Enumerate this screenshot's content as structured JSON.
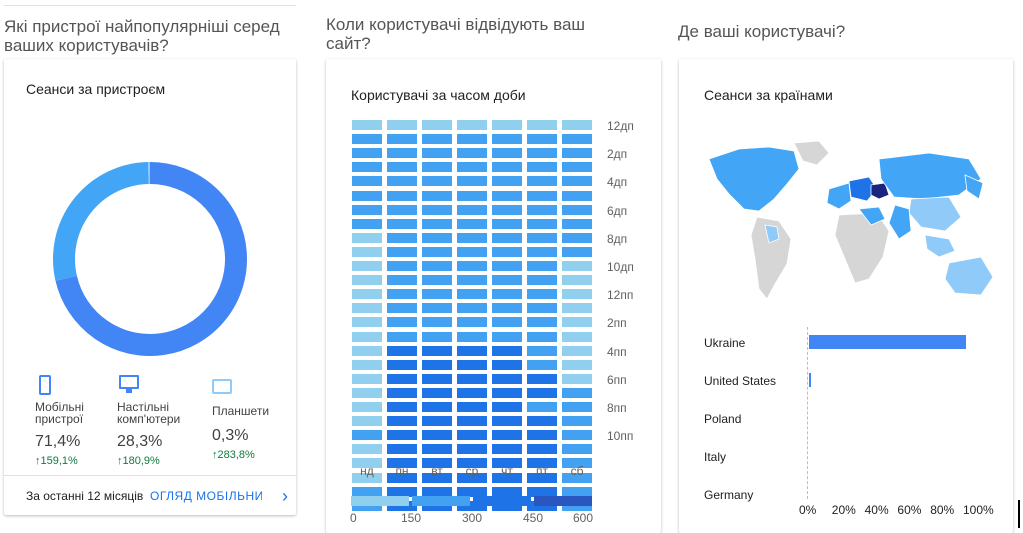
{
  "sections": {
    "devices_title": "Які пристрої найпопулярніші серед\nваших користувачів?",
    "time_title": "Коли користувачі відвідують ваш\nсайт?",
    "geo_title": "Де ваші користувачі?"
  },
  "devices_card": {
    "title": "Сеанси за пристроєм",
    "colors": {
      "mobile": "#4285f4",
      "desktop": "#42a5f5",
      "tablet": "#90caf9"
    },
    "devices": [
      {
        "label": "Мобільні\nпристрої",
        "value": "71,4%",
        "change": "159,1%",
        "share": 71.4,
        "icon": "smartphone-icon"
      },
      {
        "label": "Настільні\nкомп'ютери",
        "value": "28,3%",
        "change": "180,9%",
        "share": 28.3,
        "icon": "desktop-icon"
      },
      {
        "label": "Планшети",
        "value": "0,3%",
        "change": "283,8%",
        "share": 0.3,
        "icon": "tablet-icon"
      }
    ],
    "footer_period": "За останні 12 місяців",
    "footer_link": "ОГЛЯД МОБІЛЬНИХ ПРИСТРОЇВ"
  },
  "time_card": {
    "title": "Користувачі за часом доби",
    "days": [
      "нд",
      "пн",
      "вт",
      "ср",
      "чт",
      "пт",
      "сб"
    ],
    "hour_labels": [
      "12дп",
      "2дп",
      "4дп",
      "6дп",
      "8дп",
      "10дп",
      "12пп",
      "2пп",
      "4пп",
      "6пп",
      "8пп",
      "10пп"
    ],
    "legend_labels": [
      "0",
      "150",
      "300",
      "450",
      "600"
    ],
    "legend_colors": [
      "#90d0ee",
      "#42a1f0",
      "#1e73e6",
      "#2a56c0"
    ],
    "levels": [
      [
        0,
        0,
        0,
        0,
        0,
        0,
        0
      ],
      [
        1,
        1,
        1,
        1,
        1,
        1,
        1
      ],
      [
        1,
        1,
        1,
        1,
        1,
        1,
        1
      ],
      [
        1,
        1,
        1,
        1,
        1,
        1,
        1
      ],
      [
        1,
        1,
        1,
        1,
        1,
        1,
        1
      ],
      [
        1,
        1,
        1,
        1,
        1,
        1,
        1
      ],
      [
        1,
        1,
        1,
        1,
        1,
        1,
        1
      ],
      [
        1,
        1,
        1,
        1,
        1,
        1,
        1
      ],
      [
        0,
        1,
        1,
        1,
        1,
        1,
        1
      ],
      [
        0,
        1,
        1,
        1,
        1,
        1,
        1
      ],
      [
        0,
        1,
        1,
        1,
        1,
        1,
        0
      ],
      [
        0,
        1,
        1,
        1,
        1,
        1,
        0
      ],
      [
        0,
        1,
        1,
        1,
        1,
        1,
        0
      ],
      [
        0,
        1,
        1,
        1,
        1,
        1,
        0
      ],
      [
        0,
        1,
        1,
        1,
        1,
        1,
        0
      ],
      [
        0,
        1,
        1,
        1,
        1,
        1,
        0
      ],
      [
        0,
        2,
        2,
        2,
        2,
        1,
        0
      ],
      [
        0,
        2,
        2,
        2,
        2,
        1,
        0
      ],
      [
        0,
        2,
        2,
        2,
        2,
        2,
        0
      ],
      [
        0,
        2,
        2,
        2,
        2,
        2,
        1
      ],
      [
        0,
        2,
        2,
        2,
        2,
        1,
        1
      ],
      [
        0,
        2,
        2,
        2,
        2,
        2,
        1
      ],
      [
        1,
        2,
        2,
        2,
        2,
        2,
        1
      ],
      [
        0,
        2,
        2,
        2,
        2,
        2,
        1
      ],
      [
        0,
        2,
        2,
        2,
        2,
        2,
        1
      ],
      [
        0,
        2,
        2,
        2,
        2,
        2,
        1
      ],
      [
        1,
        2,
        2,
        2,
        2,
        2,
        1
      ],
      [
        1,
        2,
        2,
        2,
        2,
        2,
        1
      ]
    ]
  },
  "geo_card": {
    "title": "Сеанси за країнами",
    "map_colors": {
      "land": "#d6d6d6",
      "light": "#90caf9",
      "mid": "#42a5f5",
      "dark": "#1e73e6",
      "top": "#1a237e"
    },
    "countries": [
      {
        "name": "Ukraine",
        "share": 96
      },
      {
        "name": "United States",
        "share": 1.2
      },
      {
        "name": "Poland",
        "share": 0
      },
      {
        "name": "Italy",
        "share": 0
      },
      {
        "name": "Germany",
        "share": 0
      }
    ],
    "axis_labels": [
      "0%",
      "20%",
      "40%",
      "60%",
      "80%",
      "100%"
    ]
  }
}
